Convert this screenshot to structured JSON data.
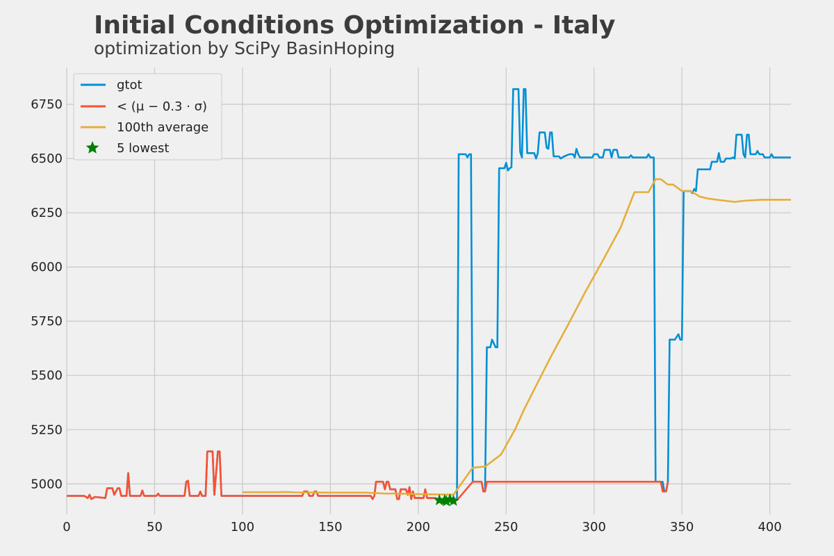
{
  "chart_data": {
    "type": "line",
    "title": "Initial Conditions Optimization - Italy",
    "subtitle": "optimization by SciPy BasinHoping",
    "xlim": [
      0,
      412
    ],
    "ylim": [
      4860,
      6920
    ],
    "x_ticks": [
      0,
      50,
      100,
      150,
      200,
      250,
      300,
      350,
      400
    ],
    "y_ticks": [
      5000,
      5250,
      5500,
      5750,
      6000,
      6250,
      6500,
      6750
    ],
    "grid": true,
    "legend_position": "top-left",
    "legend": [
      "gtot",
      "< (μ − 0.3 · σ)",
      "100th average",
      "5 lowest"
    ],
    "colors": {
      "gtot": "#008fd5",
      "threshold": "#fc4f30",
      "average": "#e5ae38",
      "lowest": "#008000",
      "grid": "#cbcbcb",
      "background": "#f0f0f0"
    },
    "series": [
      {
        "name": "gtot",
        "points": [
          [
            0,
            4945
          ],
          [
            10,
            4945
          ],
          [
            12,
            4935
          ],
          [
            13,
            4950
          ],
          [
            14,
            4930
          ],
          [
            16,
            4940
          ],
          [
            22,
            4935
          ],
          [
            23,
            4980
          ],
          [
            26,
            4980
          ],
          [
            27,
            4950
          ],
          [
            29,
            4980
          ],
          [
            30,
            4980
          ],
          [
            31,
            4945
          ],
          [
            34,
            4945
          ],
          [
            35,
            5050
          ],
          [
            36,
            4945
          ],
          [
            42,
            4945
          ],
          [
            43,
            4970
          ],
          [
            44,
            4945
          ],
          [
            51,
            4945
          ],
          [
            52,
            4955
          ],
          [
            53,
            4945
          ],
          [
            67,
            4945
          ],
          [
            68,
            5010
          ],
          [
            69,
            5015
          ],
          [
            70,
            4945
          ],
          [
            75,
            4945
          ],
          [
            76,
            4965
          ],
          [
            77,
            4945
          ],
          [
            79,
            4945
          ],
          [
            80,
            5150
          ],
          [
            83,
            5150
          ],
          [
            84,
            4950
          ],
          [
            86,
            5150
          ],
          [
            87,
            5150
          ],
          [
            88,
            4945
          ],
          [
            134,
            4945
          ],
          [
            135,
            4965
          ],
          [
            137,
            4965
          ],
          [
            138,
            4945
          ],
          [
            140,
            4945
          ],
          [
            141,
            4965
          ],
          [
            142,
            4965
          ],
          [
            143,
            4945
          ],
          [
            173,
            4945
          ],
          [
            174,
            4930
          ],
          [
            175,
            4945
          ],
          [
            176,
            5010
          ],
          [
            180,
            5010
          ],
          [
            181,
            4975
          ],
          [
            182,
            5010
          ],
          [
            183,
            5010
          ],
          [
            184,
            4975
          ],
          [
            187,
            4975
          ],
          [
            188,
            4930
          ],
          [
            189,
            4930
          ],
          [
            190,
            4975
          ],
          [
            193,
            4975
          ],
          [
            194,
            4950
          ],
          [
            195,
            4985
          ],
          [
            196,
            4930
          ],
          [
            197,
            4965
          ],
          [
            198,
            4935
          ],
          [
            203,
            4935
          ],
          [
            204,
            4975
          ],
          [
            205,
            4935
          ],
          [
            210,
            4935
          ],
          [
            211,
            4925
          ],
          [
            220,
            4925
          ],
          [
            222,
            4930
          ],
          [
            223,
            6520
          ],
          [
            227,
            6520
          ],
          [
            228,
            6505
          ],
          [
            229,
            6520
          ],
          [
            230,
            6520
          ],
          [
            231,
            5010
          ],
          [
            236,
            5010
          ],
          [
            237,
            4965
          ],
          [
            238,
            4965
          ],
          [
            239,
            5630
          ],
          [
            241,
            5630
          ],
          [
            242,
            5665
          ],
          [
            244,
            5630
          ],
          [
            245,
            5630
          ],
          [
            246,
            6455
          ],
          [
            249,
            6455
          ],
          [
            250,
            6480
          ],
          [
            251,
            6445
          ],
          [
            252,
            6455
          ],
          [
            253,
            6460
          ],
          [
            254,
            6820
          ],
          [
            257,
            6820
          ],
          [
            258,
            6530
          ],
          [
            259,
            6505
          ],
          [
            260,
            6820
          ],
          [
            261,
            6820
          ],
          [
            262,
            6525
          ],
          [
            266,
            6525
          ],
          [
            267,
            6500
          ],
          [
            268,
            6525
          ],
          [
            269,
            6620
          ],
          [
            272,
            6620
          ],
          [
            273,
            6550
          ],
          [
            274,
            6545
          ],
          [
            275,
            6620
          ],
          [
            276,
            6620
          ],
          [
            277,
            6510
          ],
          [
            280,
            6510
          ],
          [
            281,
            6500
          ],
          [
            283,
            6510
          ],
          [
            286,
            6520
          ],
          [
            288,
            6520
          ],
          [
            289,
            6505
          ],
          [
            290,
            6545
          ],
          [
            291,
            6520
          ],
          [
            292,
            6505
          ],
          [
            299,
            6505
          ],
          [
            300,
            6520
          ],
          [
            302,
            6520
          ],
          [
            303,
            6505
          ],
          [
            305,
            6505
          ],
          [
            306,
            6540
          ],
          [
            309,
            6540
          ],
          [
            310,
            6505
          ],
          [
            311,
            6540
          ],
          [
            313,
            6540
          ],
          [
            314,
            6505
          ],
          [
            320,
            6505
          ],
          [
            321,
            6515
          ],
          [
            322,
            6505
          ],
          [
            330,
            6505
          ],
          [
            331,
            6520
          ],
          [
            332,
            6505
          ],
          [
            334,
            6505
          ],
          [
            335,
            5010
          ],
          [
            339,
            5010
          ],
          [
            340,
            4965
          ],
          [
            341,
            4965
          ],
          [
            342,
            5010
          ],
          [
            343,
            5665
          ],
          [
            346,
            5665
          ],
          [
            348,
            5690
          ],
          [
            349,
            5665
          ],
          [
            350,
            5665
          ],
          [
            351,
            6350
          ],
          [
            355,
            6350
          ],
          [
            356,
            6340
          ],
          [
            357,
            6360
          ],
          [
            358,
            6350
          ],
          [
            359,
            6450
          ],
          [
            366,
            6450
          ],
          [
            367,
            6485
          ],
          [
            370,
            6485
          ],
          [
            371,
            6525
          ],
          [
            372,
            6485
          ],
          [
            374,
            6485
          ],
          [
            375,
            6500
          ],
          [
            378,
            6500
          ],
          [
            379,
            6505
          ],
          [
            380,
            6500
          ],
          [
            381,
            6610
          ],
          [
            384,
            6610
          ],
          [
            385,
            6520
          ],
          [
            386,
            6505
          ],
          [
            387,
            6610
          ],
          [
            388,
            6610
          ],
          [
            389,
            6520
          ],
          [
            392,
            6520
          ],
          [
            393,
            6535
          ],
          [
            394,
            6520
          ],
          [
            396,
            6520
          ],
          [
            397,
            6505
          ],
          [
            400,
            6505
          ],
          [
            401,
            6520
          ],
          [
            402,
            6505
          ],
          [
            412,
            6505
          ]
        ]
      },
      {
        "name": "< (μ − 0.3 · σ)",
        "points": [
          [
            0,
            4945
          ],
          [
            10,
            4945
          ],
          [
            12,
            4935
          ],
          [
            13,
            4950
          ],
          [
            14,
            4930
          ],
          [
            16,
            4940
          ],
          [
            22,
            4935
          ],
          [
            23,
            4980
          ],
          [
            26,
            4980
          ],
          [
            27,
            4950
          ],
          [
            29,
            4980
          ],
          [
            30,
            4980
          ],
          [
            31,
            4945
          ],
          [
            34,
            4945
          ],
          [
            35,
            5050
          ],
          [
            36,
            4945
          ],
          [
            42,
            4945
          ],
          [
            43,
            4970
          ],
          [
            44,
            4945
          ],
          [
            51,
            4945
          ],
          [
            52,
            4955
          ],
          [
            53,
            4945
          ],
          [
            67,
            4945
          ],
          [
            68,
            5010
          ],
          [
            69,
            5015
          ],
          [
            70,
            4945
          ],
          [
            75,
            4945
          ],
          [
            76,
            4965
          ],
          [
            77,
            4945
          ],
          [
            79,
            4945
          ],
          [
            80,
            5150
          ],
          [
            83,
            5150
          ],
          [
            84,
            4950
          ],
          [
            86,
            5150
          ],
          [
            87,
            5150
          ],
          [
            88,
            4945
          ],
          [
            134,
            4945
          ],
          [
            135,
            4965
          ],
          [
            137,
            4965
          ],
          [
            138,
            4945
          ],
          [
            140,
            4945
          ],
          [
            141,
            4965
          ],
          [
            142,
            4965
          ],
          [
            143,
            4945
          ],
          [
            173,
            4945
          ],
          [
            174,
            4930
          ],
          [
            175,
            4945
          ],
          [
            176,
            5010
          ],
          [
            180,
            5010
          ],
          [
            181,
            4975
          ],
          [
            182,
            5010
          ],
          [
            183,
            5010
          ],
          [
            184,
            4975
          ],
          [
            187,
            4975
          ],
          [
            188,
            4930
          ],
          [
            189,
            4930
          ],
          [
            190,
            4975
          ],
          [
            193,
            4975
          ],
          [
            194,
            4950
          ],
          [
            195,
            4985
          ],
          [
            196,
            4930
          ],
          [
            197,
            4965
          ],
          [
            198,
            4935
          ],
          [
            203,
            4935
          ],
          [
            204,
            4975
          ],
          [
            205,
            4935
          ],
          [
            210,
            4935
          ],
          [
            211,
            4925
          ],
          [
            222,
            4925
          ],
          [
            231,
            5010
          ],
          [
            236,
            5010
          ],
          [
            237,
            4965
          ],
          [
            238,
            4965
          ],
          [
            239,
            5010
          ],
          [
            338,
            5010
          ],
          [
            339,
            4965
          ],
          [
            341,
            4965
          ],
          [
            342,
            5010
          ]
        ]
      },
      {
        "name": "100th average",
        "points": [
          [
            100,
            4962
          ],
          [
            120,
            4962
          ],
          [
            125,
            4963
          ],
          [
            130,
            4961
          ],
          [
            150,
            4960
          ],
          [
            170,
            4960
          ],
          [
            180,
            4956
          ],
          [
            190,
            4955
          ],
          [
            200,
            4953
          ],
          [
            210,
            4952
          ],
          [
            220,
            4950
          ],
          [
            231,
            5075
          ],
          [
            238,
            5080
          ],
          [
            247,
            5135
          ],
          [
            255,
            5250
          ],
          [
            260,
            5340
          ],
          [
            265,
            5420
          ],
          [
            275,
            5580
          ],
          [
            285,
            5730
          ],
          [
            295,
            5885
          ],
          [
            305,
            6030
          ],
          [
            315,
            6180
          ],
          [
            323,
            6345
          ],
          [
            331,
            6345
          ],
          [
            335,
            6405
          ],
          [
            338,
            6405
          ],
          [
            342,
            6380
          ],
          [
            345,
            6380
          ],
          [
            350,
            6350
          ],
          [
            355,
            6350
          ],
          [
            360,
            6325
          ],
          [
            365,
            6315
          ],
          [
            375,
            6305
          ],
          [
            380,
            6300
          ],
          [
            385,
            6305
          ],
          [
            395,
            6310
          ],
          [
            412,
            6310
          ]
        ]
      }
    ],
    "lowest_points": [
      [
        212,
        4925
      ],
      [
        215,
        4925
      ],
      [
        216,
        4920
      ],
      [
        218,
        4928
      ],
      [
        220,
        4922
      ]
    ]
  }
}
